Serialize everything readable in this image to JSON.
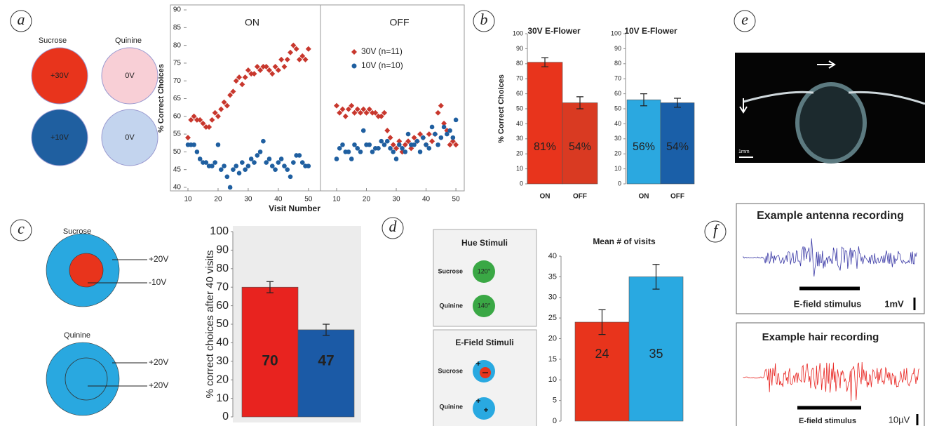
{
  "panel_labels": [
    "a",
    "b",
    "c",
    "d",
    "e",
    "f"
  ],
  "panel_a": {
    "column_labels": [
      "Sucrose",
      "Quinine"
    ],
    "stimuli": [
      "+30V",
      "0V",
      "+10V",
      "0V"
    ]
  },
  "panel_c": {
    "sucrose": {
      "title": "Sucrose",
      "labels": [
        "+20V",
        "-10V"
      ]
    },
    "quinine": {
      "title": "Quinine",
      "labels": [
        "+20V",
        "+20V"
      ]
    }
  },
  "panel_d": {
    "hue": {
      "title": "Hue Stimuli",
      "rows": [
        {
          "label": "Sucrose",
          "value": "120°"
        },
        {
          "label": "Quinine",
          "value": "140°"
        }
      ]
    },
    "efield": {
      "title": "E-Field Stimuli",
      "rows": [
        "Sucrose",
        "Quinine"
      ]
    }
  },
  "panel_e": {
    "scale": "1mm"
  },
  "panel_f": {
    "recordings": [
      {
        "title": "Example antenna recording",
        "stimulus": "E-field stimulus",
        "scale": "1mV"
      },
      {
        "title": "Example hair recording",
        "stimulus": "E-field stimulus",
        "scale": "10µV"
      }
    ]
  },
  "chart_data": [
    {
      "type": "scatter",
      "ylabel": "% Correct Choices",
      "xlabel": "Visit Number",
      "x": [
        10,
        11,
        12,
        13,
        14,
        15,
        16,
        17,
        18,
        19,
        20,
        21,
        22,
        23,
        24,
        25,
        26,
        27,
        28,
        29,
        30,
        31,
        32,
        33,
        34,
        35,
        36,
        37,
        38,
        39,
        40,
        41,
        42,
        43,
        44,
        45,
        46,
        47,
        48,
        49,
        50
      ],
      "ylim": [
        39,
        91.4
      ],
      "yticks": [
        40,
        45,
        50,
        55,
        60,
        65,
        70,
        75,
        80,
        85,
        90
      ],
      "xticks": [
        10,
        20,
        30,
        40,
        50
      ],
      "series": [
        {
          "name": "30V (n=11)",
          "color": "#c8372d",
          "marker": "diamond"
        },
        {
          "name": "10V (n=10)",
          "color": "#1f5fa0",
          "marker": "circle"
        }
      ],
      "facets": [
        {
          "title": "ON",
          "xlim": [
            8.6,
            54
          ],
          "values": [
            [
              54,
              59,
              60,
              59,
              59,
              58,
              57,
              57,
              59,
              61,
              60,
              62,
              64,
              63,
              66,
              67,
              70,
              71,
              69,
              71,
              73,
              72,
              72,
              74,
              73,
              74,
              74,
              73,
              72,
              74,
              73,
              76,
              74,
              76,
              78,
              80,
              79,
              76,
              77,
              76,
              79
            ],
            [
              52,
              52,
              52,
              50,
              48,
              47,
              47,
              46,
              46,
              47,
              52,
              45,
              46,
              43,
              40,
              45,
              46,
              44,
              47,
              45,
              46,
              48,
              47,
              49,
              50,
              53,
              47,
              48,
              46,
              45,
              47,
              48,
              46,
              45,
              43,
              47,
              49,
              49,
              47,
              46,
              46
            ]
          ]
        },
        {
          "title": "OFF",
          "xlim": [
            4.6,
            52.8
          ],
          "values": [
            [
              63,
              61,
              62,
              60,
              62,
              63,
              61,
              62,
              61,
              62,
              61,
              62,
              61,
              61,
              60,
              60,
              61,
              56,
              54,
              52,
              51,
              53,
              50,
              52,
              53,
              51,
              54,
              53,
              55,
              54,
              52,
              55,
              53,
              55,
              61,
              63,
              58,
              56,
              52,
              53,
              52
            ],
            [
              48,
              51,
              52,
              50,
              50,
              48,
              52,
              51,
              50,
              56,
              52,
              52,
              50,
              51,
              51,
              53,
              52,
              53,
              51,
              50,
              48,
              52,
              51,
              50,
              55,
              52,
              52,
              53,
              50,
              54,
              52,
              51,
              57,
              55,
              52,
              54,
              57,
              55,
              56,
              54,
              59
            ]
          ]
        }
      ]
    },
    {
      "type": "bar",
      "title": "30V E-Flower",
      "ylabel": "% Correct Choices",
      "categories": [
        "ON",
        "OFF"
      ],
      "values": [
        81,
        54
      ],
      "value_labels": [
        "81%",
        "54%"
      ],
      "errors": [
        3,
        4
      ],
      "colors": [
        "#e8341c",
        "#d93a22"
      ],
      "ylim": [
        0,
        100
      ],
      "yticks": [
        0,
        10,
        20,
        30,
        40,
        50,
        60,
        70,
        80,
        90,
        100
      ]
    },
    {
      "type": "bar",
      "title": "10V E-Flower",
      "categories": [
        "ON",
        "OFF"
      ],
      "values": [
        56,
        54
      ],
      "value_labels": [
        "56%",
        "54%"
      ],
      "errors": [
        4,
        3
      ],
      "colors": [
        "#2ba8e0",
        "#1a5fa8"
      ],
      "ylim": [
        0,
        100
      ],
      "yticks": [
        0,
        10,
        20,
        30,
        40,
        50,
        60,
        70,
        80,
        90,
        100
      ]
    },
    {
      "type": "bar",
      "ylabel": "% correct choices after 40 visits",
      "categories": [
        null,
        null
      ],
      "values": [
        70,
        47
      ],
      "errors": [
        3,
        3
      ],
      "colors": [
        "#e8231f",
        "#1b5aa6"
      ],
      "ylim": [
        0,
        100
      ],
      "yticks": [
        0,
        10,
        20,
        30,
        40,
        50,
        60,
        70,
        80,
        90,
        100
      ]
    },
    {
      "type": "bar",
      "title": "Mean # of visits",
      "categories": [
        null,
        null
      ],
      "values": [
        24,
        35
      ],
      "errors": [
        3,
        3
      ],
      "colors": [
        "#e8341c",
        "#29a9e1"
      ],
      "ylim": [
        0,
        40
      ],
      "yticks": [
        0,
        5,
        10,
        15,
        20,
        25,
        30,
        35,
        40
      ]
    }
  ]
}
